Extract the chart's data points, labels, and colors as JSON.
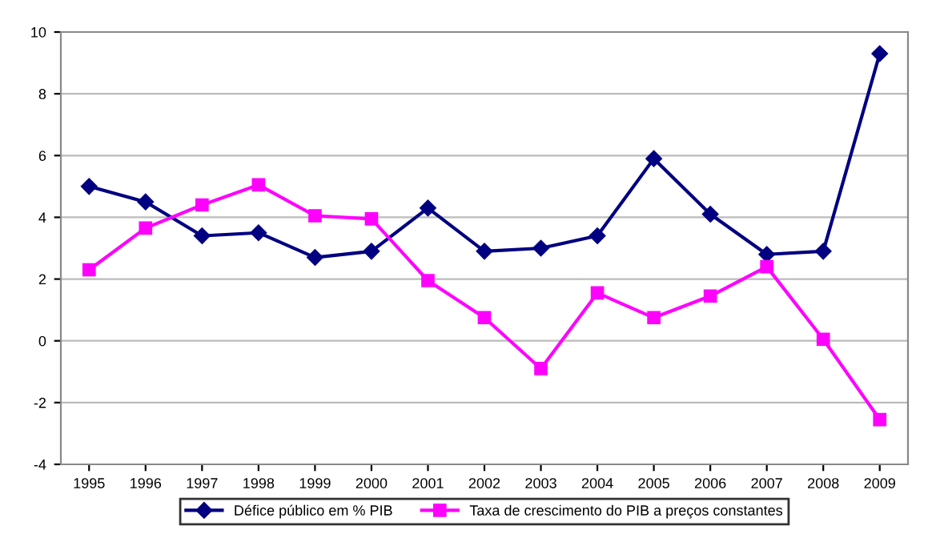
{
  "chart_data": {
    "type": "line",
    "categories": [
      "1995",
      "1996",
      "1997",
      "1998",
      "1999",
      "2000",
      "2001",
      "2002",
      "2003",
      "2004",
      "2005",
      "2006",
      "2007",
      "2008",
      "2009"
    ],
    "series": [
      {
        "name": "Défice público em % PIB",
        "color": "#000080",
        "marker": "diamond",
        "values": [
          5.0,
          4.5,
          3.4,
          3.5,
          2.7,
          2.9,
          4.3,
          2.9,
          3.0,
          3.4,
          5.9,
          4.1,
          2.8,
          2.9,
          9.3
        ]
      },
      {
        "name": "Taxa de crescimento do PIB a preços constantes",
        "color": "#ff00ff",
        "marker": "square",
        "values": [
          2.3,
          3.65,
          4.4,
          5.05,
          4.05,
          3.95,
          1.95,
          0.75,
          -0.9,
          1.55,
          0.75,
          1.45,
          2.4,
          0.05,
          -2.55
        ]
      }
    ],
    "ylim": [
      -4,
      10
    ],
    "yticks": [
      -4,
      -2,
      0,
      2,
      4,
      6,
      8,
      10
    ],
    "grid": "y",
    "legend": "bottom"
  }
}
